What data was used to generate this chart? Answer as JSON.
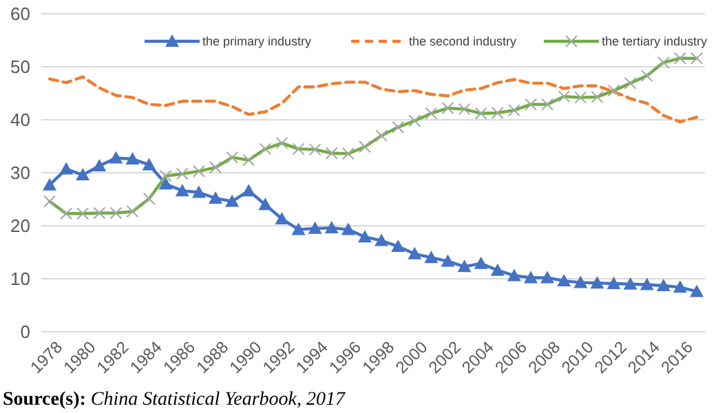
{
  "chart_data": {
    "type": "line",
    "categories": [
      "1978",
      null,
      "1980",
      null,
      "1982",
      null,
      "1984",
      null,
      "1986",
      null,
      "1988",
      null,
      "1990",
      null,
      "1992",
      null,
      "1994",
      null,
      "1996",
      null,
      "1998",
      null,
      "2000",
      null,
      "2002",
      null,
      "2004",
      null,
      "2006",
      null,
      "2008",
      null,
      "2010",
      null,
      "2012",
      null,
      "2014",
      null,
      "2016",
      null
    ],
    "series": [
      {
        "name": "the primary industry",
        "color": "#4472c4",
        "marker": "triangle",
        "line_style": "solid",
        "values": [
          27.7,
          30.7,
          29.6,
          31.3,
          32.8,
          32.6,
          31.5,
          27.9,
          26.6,
          26.3,
          25.2,
          24.6,
          26.6,
          24.0,
          21.3,
          19.3,
          19.5,
          19.6,
          19.3,
          17.9,
          17.2,
          16.1,
          14.7,
          14.0,
          13.3,
          12.3,
          12.9,
          11.6,
          10.6,
          10.2,
          10.2,
          9.6,
          9.3,
          9.2,
          9.1,
          9.0,
          8.9,
          8.7,
          8.4,
          7.6
        ]
      },
      {
        "name": "the second industry",
        "color": "#ed7d31",
        "marker": "none",
        "line_style": "dashed",
        "values": [
          47.7,
          47.0,
          48.1,
          46.0,
          44.6,
          44.2,
          42.9,
          42.7,
          43.5,
          43.5,
          43.5,
          42.5,
          41.0,
          41.5,
          43.1,
          46.2,
          46.2,
          46.8,
          47.1,
          47.1,
          45.8,
          45.3,
          45.5,
          44.8,
          44.5,
          45.6,
          45.9,
          47.0,
          47.6,
          46.9,
          46.9,
          45.9,
          46.4,
          46.4,
          45.3,
          44.0,
          43.1,
          40.8,
          39.6,
          40.5
        ]
      },
      {
        "name": "the tertiary industry",
        "color": "#70ad47",
        "marker": "cross",
        "line_style": "solid",
        "values": [
          24.6,
          22.3,
          22.3,
          22.4,
          22.4,
          22.7,
          25.1,
          29.4,
          29.8,
          30.3,
          31.0,
          32.9,
          32.4,
          34.5,
          35.6,
          34.5,
          34.4,
          33.7,
          33.6,
          34.9,
          37.0,
          38.6,
          39.8,
          41.2,
          42.2,
          42.0,
          41.2,
          41.3,
          41.8,
          42.9,
          42.9,
          44.4,
          44.2,
          44.3,
          45.5,
          46.9,
          48.3,
          50.8,
          51.6,
          51.6
        ]
      }
    ],
    "ylim": [
      0,
      60
    ],
    "yticks": [
      0,
      10,
      20,
      30,
      40,
      50,
      60
    ],
    "grid": "y",
    "legend": "top",
    "annotations": [
      "Source(s): China Statistical Yearbook, 2017"
    ]
  }
}
